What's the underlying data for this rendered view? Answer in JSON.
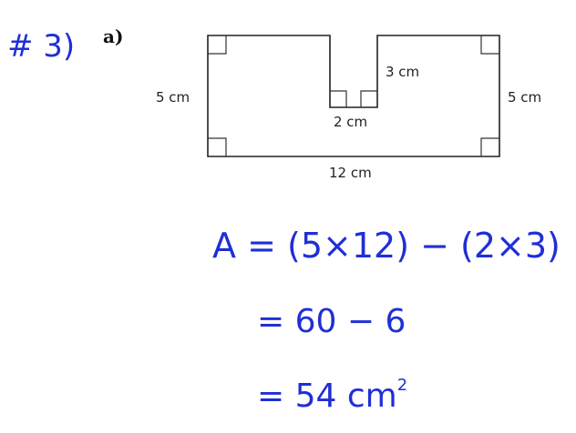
{
  "problem": {
    "number": "# 3)",
    "part": "a)"
  },
  "figure": {
    "labels": {
      "left_side": "5 cm",
      "right_side": "5 cm",
      "notch_depth": "3 cm",
      "notch_width": "2 cm",
      "bottom_length": "12 cm"
    }
  },
  "solution": {
    "line1": "A = (5×12) − (2×3)",
    "line2": "= 60 − 6",
    "line3_value": "= 54 cm",
    "line3_exponent": "2"
  },
  "colors": {
    "ink": "#1f2fd6",
    "diagram": "#222222"
  }
}
